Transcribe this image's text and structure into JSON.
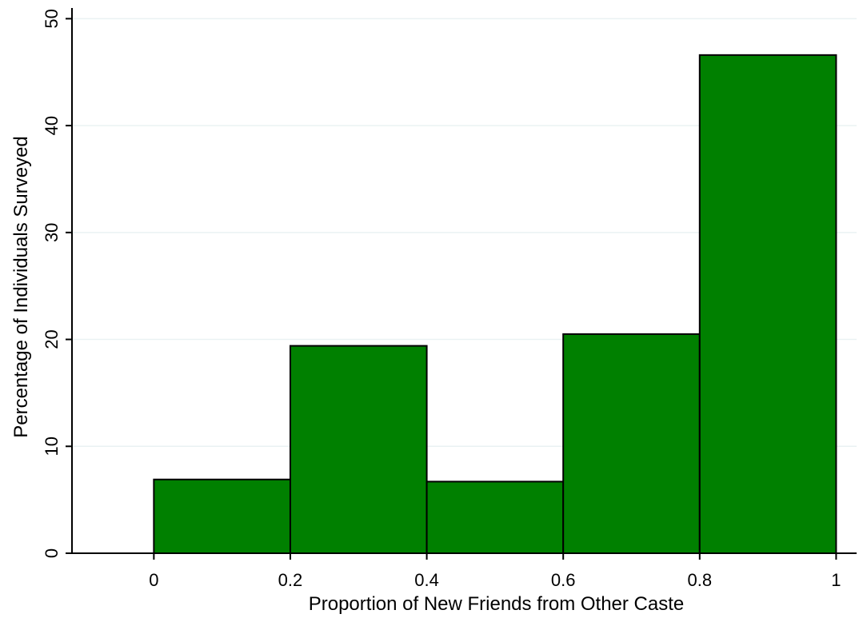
{
  "chart_data": {
    "type": "bar",
    "subtype": "histogram",
    "title": "",
    "xlabel": "Proportion of New Friends from Other Caste",
    "ylabel": "Percentage of Individuals Surveyed",
    "bins": [
      {
        "start": 0.0,
        "end": 0.2,
        "value": 6.9
      },
      {
        "start": 0.2,
        "end": 0.4,
        "value": 19.4
      },
      {
        "start": 0.4,
        "end": 0.6,
        "value": 6.7
      },
      {
        "start": 0.6,
        "end": 0.8,
        "value": 20.5
      },
      {
        "start": 0.8,
        "end": 1.0,
        "value": 46.6
      }
    ],
    "xlim": [
      -0.12,
      1.03
    ],
    "ylim": [
      0,
      51
    ],
    "xticks": [
      0,
      0.2,
      0.4,
      0.6,
      0.8,
      1
    ],
    "xtick_labels": [
      "0",
      "0.2",
      "0.4",
      "0.6",
      "0.8",
      "1"
    ],
    "yticks": [
      0,
      10,
      20,
      30,
      40,
      50
    ],
    "ytick_labels": [
      "0",
      "10",
      "20",
      "30",
      "40",
      "50"
    ],
    "grid": "horizontal",
    "legend": "none",
    "colors": {
      "bar_fill": "#008000",
      "bar_edge": "#000000",
      "grid": "#eaf2f3",
      "axis": "#000000"
    }
  }
}
